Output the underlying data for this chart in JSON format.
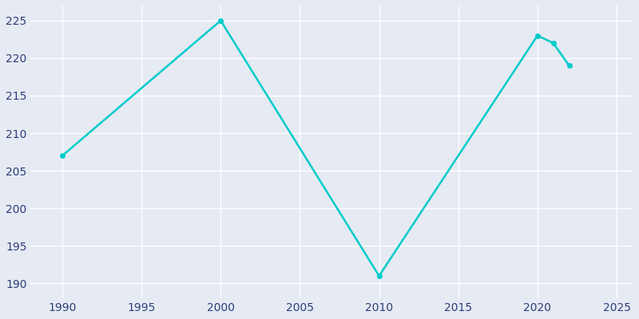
{
  "years": [
    1990,
    2000,
    2010,
    2020,
    2021,
    2022
  ],
  "population": [
    207,
    225,
    191,
    223,
    222,
    219
  ],
  "line_color": "#00CCCC",
  "marker_color": "#00CCCC",
  "bg_color": "#e6eaf2",
  "grid_color": "#ffffff",
  "xlabel": "",
  "ylabel": "",
  "xlim": [
    1988,
    2026
  ],
  "ylim": [
    188,
    227
  ],
  "xticks": [
    1990,
    1995,
    2000,
    2005,
    2010,
    2015,
    2020,
    2025
  ],
  "yticks": [
    190,
    195,
    200,
    205,
    210,
    215,
    220,
    225
  ],
  "tick_label_color": "#2c3e7a",
  "linewidth": 1.8,
  "markersize": 4
}
